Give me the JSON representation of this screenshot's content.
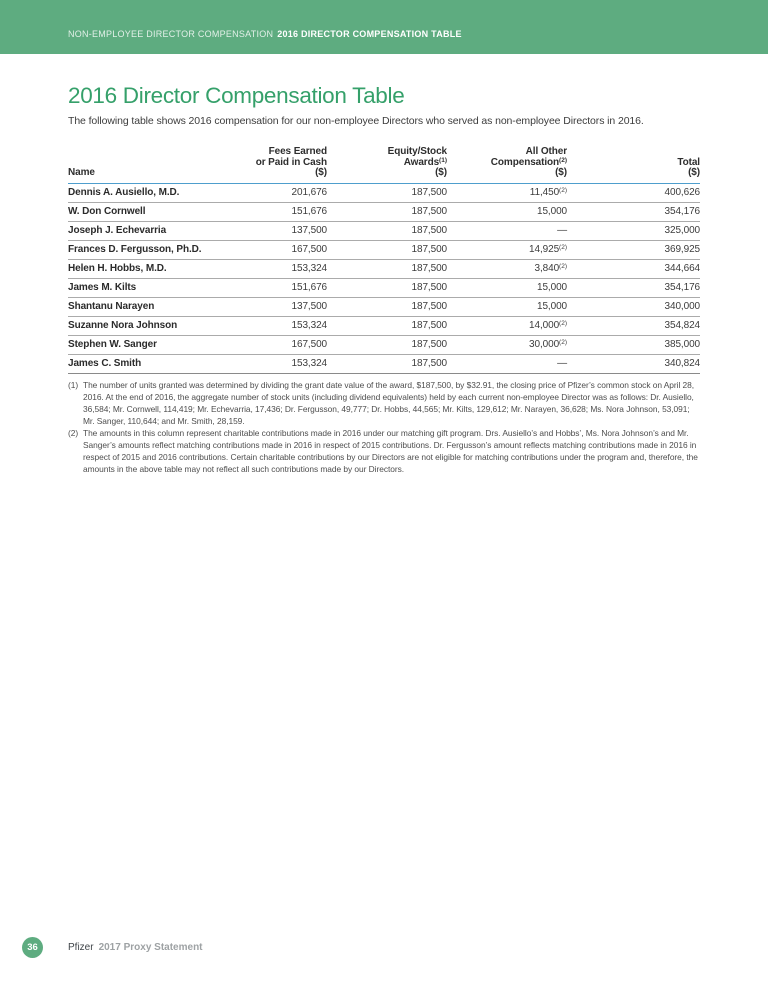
{
  "header": {
    "breadcrumb_section": "NON-EMPLOYEE DIRECTOR COMPENSATION",
    "breadcrumb_current": "2016 DIRECTOR COMPENSATION TABLE"
  },
  "main": {
    "title": "2016 Director Compensation Table",
    "intro": "The following table shows 2016 compensation for our non-employee Directors who served as non-employee Directors in 2016."
  },
  "table": {
    "columns": [
      {
        "key": "name",
        "align": "left",
        "lines": [
          {
            "text": "Name"
          }
        ]
      },
      {
        "key": "fees",
        "align": "right",
        "lines": [
          {
            "text": "Fees Earned"
          },
          {
            "text": "or Paid in Cash"
          },
          {
            "text": "($)"
          }
        ]
      },
      {
        "key": "equity",
        "align": "right",
        "lines": [
          {
            "text": "Equity/Stock"
          },
          {
            "text": "Awards",
            "sup": "(1)"
          },
          {
            "text": "($)"
          }
        ]
      },
      {
        "key": "other",
        "align": "right",
        "lines": [
          {
            "text": "All Other"
          },
          {
            "text": "Compensation",
            "sup": "(2)"
          },
          {
            "text": "($)"
          }
        ]
      },
      {
        "key": "total",
        "align": "right",
        "lines": [
          {
            "text": "Total"
          },
          {
            "text": "($)"
          }
        ]
      }
    ],
    "rows": [
      {
        "name": "Dennis A. Ausiello, M.D.",
        "fees": "201,676",
        "equity": "187,500",
        "other": "11,450",
        "other_sup": "(2)",
        "total": "400,626"
      },
      {
        "name": "W. Don Cornwell",
        "fees": "151,676",
        "equity": "187,500",
        "other": "15,000",
        "other_sup": "",
        "total": "354,176"
      },
      {
        "name": "Joseph J. Echevarria",
        "fees": "137,500",
        "equity": "187,500",
        "other": "—",
        "other_sup": "",
        "total": "325,000"
      },
      {
        "name": "Frances D. Fergusson, Ph.D.",
        "fees": "167,500",
        "equity": "187,500",
        "other": "14,925",
        "other_sup": "(2)",
        "total": "369,925"
      },
      {
        "name": "Helen H. Hobbs, M.D.",
        "fees": "153,324",
        "equity": "187,500",
        "other": "3,840",
        "other_sup": "(2)",
        "total": "344,664"
      },
      {
        "name": "James M. Kilts",
        "fees": "151,676",
        "equity": "187,500",
        "other": "15,000",
        "other_sup": "",
        "total": "354,176"
      },
      {
        "name": "Shantanu Narayen",
        "fees": "137,500",
        "equity": "187,500",
        "other": "15,000",
        "other_sup": "",
        "total": "340,000"
      },
      {
        "name": "Suzanne Nora Johnson",
        "fees": "153,324",
        "equity": "187,500",
        "other": "14,000",
        "other_sup": "(2)",
        "total": "354,824"
      },
      {
        "name": "Stephen W. Sanger",
        "fees": "167,500",
        "equity": "187,500",
        "other": "30,000",
        "other_sup": "(2)",
        "total": "385,000"
      },
      {
        "name": "James C. Smith",
        "fees": "153,324",
        "equity": "187,500",
        "other": "—",
        "other_sup": "",
        "total": "340,824"
      }
    ]
  },
  "footnotes": [
    {
      "marker": "(1)",
      "text": "The number of units granted was determined by dividing the grant date value of the award, $187,500, by $32.91, the closing price of Pfizer’s common stock on April 28, 2016. At the end of 2016, the aggregate number of stock units (including dividend equivalents) held by each current non-employee Director was as follows: Dr. Ausiello, 36,584; Mr. Cornwell, 114,419; Mr. Echevarria, 17,436; Dr. Fergusson, 49,777; Dr. Hobbs, 44,565; Mr. Kilts, 129,612; Mr. Narayen, 36,628; Ms. Nora Johnson, 53,091; Mr. Sanger, 110,644; and Mr. Smith, 28,159."
    },
    {
      "marker": "(2)",
      "text": "The amounts in this column represent charitable contributions made in 2016 under our matching gift program. Drs. Ausiello’s and Hobbs’, Ms. Nora Johnson’s and Mr. Sanger’s amounts reflect matching contributions made in 2016 in respect of 2015 contributions. Dr. Fergusson’s amount reflects matching contributions made in 2016 in respect of 2015 and 2016 contributions. Certain charitable contributions by our Directors are not eligible for matching contributions under the program and, therefore, the amounts in the above table may not reflect all such contributions made by our Directors."
    }
  ],
  "footer": {
    "page_number": "36",
    "brand": "Pfizer",
    "document": "2017 Proxy Statement"
  },
  "colors": {
    "banner_green": "#5EAC80",
    "heading_green": "#35A06A",
    "header_rule_blue": "#4E9ECD",
    "row_divider_gray": "#ABABAB",
    "table_bottom_rule": "#8A8A8A",
    "footer_doc_gray": "#9EA2A4"
  }
}
